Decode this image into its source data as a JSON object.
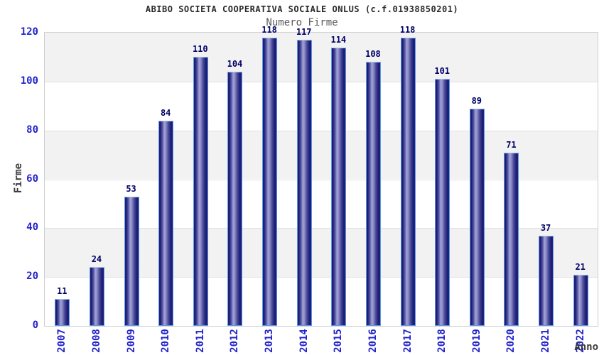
{
  "chart_data": {
    "type": "bar",
    "title": "ABIBO SOCIETA COOPERATIVA SOCIALE ONLUS (c.f.01938850201)",
    "subtitle": "Numero Firme",
    "xlabel": "Anno",
    "ylabel": "Firme",
    "categories": [
      "2007",
      "2008",
      "2009",
      "2010",
      "2011",
      "2012",
      "2013",
      "2014",
      "2015",
      "2016",
      "2017",
      "2018",
      "2019",
      "2020",
      "2021",
      "2022"
    ],
    "values": [
      11,
      24,
      53,
      84,
      110,
      104,
      118,
      117,
      114,
      108,
      118,
      101,
      89,
      71,
      37,
      21
    ],
    "ylim": [
      0,
      120
    ],
    "yticks": [
      0,
      20,
      40,
      60,
      80,
      100,
      120
    ],
    "grid": "horizontal gridlines every 20 with alternating gray/white bands",
    "legend": "none",
    "value_labels": "above each bar",
    "colors": {
      "bar_dark": "#1c1c74",
      "bar_light": "#a2a2d8",
      "bar_border": "#5a9ae6",
      "tick_label": "#2323cd",
      "value_label": "#000066",
      "band_gray": "#f2f2f2",
      "gridline": "#e0e0e0",
      "plot_border": "#cfcfcf",
      "title": "#2a2a2a",
      "subtitle": "#5c5c5c",
      "axis_title": "#3a3a3a"
    }
  }
}
